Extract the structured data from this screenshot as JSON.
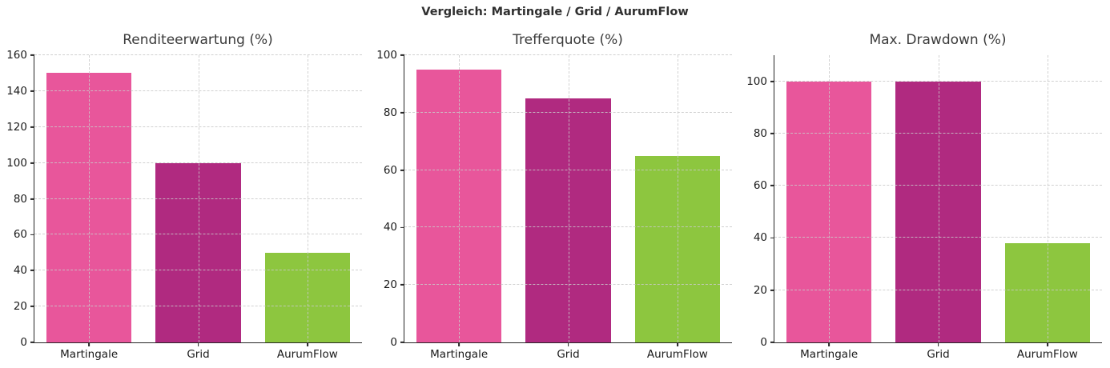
{
  "figure_title": "Vergleich: Martingale / Grid / AurumFlow",
  "colors": {
    "bar_martingale": "#e8569b",
    "bar_grid": "#b02a80",
    "bar_aurumflow": "#8dc63f",
    "gridline": "#c9c9c9",
    "axis": "#262626",
    "title_text": "#2f2f2f"
  },
  "categories": [
    "Martingale",
    "Grid",
    "AurumFlow"
  ],
  "chart_data": [
    {
      "type": "bar",
      "title": "Renditeerwartung (%)",
      "categories": [
        "Martingale",
        "Grid",
        "AurumFlow"
      ],
      "values": [
        150,
        100,
        50
      ],
      "bar_colors": [
        "#e8569b",
        "#b02a80",
        "#8dc63f"
      ],
      "xlabel": "",
      "ylabel": "",
      "ylim": [
        0,
        160
      ],
      "yticks": [
        0,
        20,
        40,
        60,
        80,
        100,
        120,
        140,
        160
      ],
      "grid": "dashed, above bars",
      "legend": "none"
    },
    {
      "type": "bar",
      "title": "Trefferquote (%)",
      "categories": [
        "Martingale",
        "Grid",
        "AurumFlow"
      ],
      "values": [
        95,
        85,
        65
      ],
      "bar_colors": [
        "#e8569b",
        "#b02a80",
        "#8dc63f"
      ],
      "xlabel": "",
      "ylabel": "",
      "ylim": [
        0,
        100
      ],
      "yticks": [
        0,
        20,
        40,
        60,
        80,
        100
      ],
      "grid": "dashed, above bars",
      "legend": "none"
    },
    {
      "type": "bar",
      "title": "Max. Drawdown (%)",
      "categories": [
        "Martingale",
        "Grid",
        "AurumFlow"
      ],
      "values": [
        100,
        100,
        38
      ],
      "bar_colors": [
        "#e8569b",
        "#b02a80",
        "#8dc63f"
      ],
      "xlabel": "",
      "ylabel": "",
      "ylim": [
        0,
        110
      ],
      "yticks": [
        0,
        20,
        40,
        60,
        80,
        100
      ],
      "grid": "dashed, above bars",
      "legend": "none"
    }
  ]
}
